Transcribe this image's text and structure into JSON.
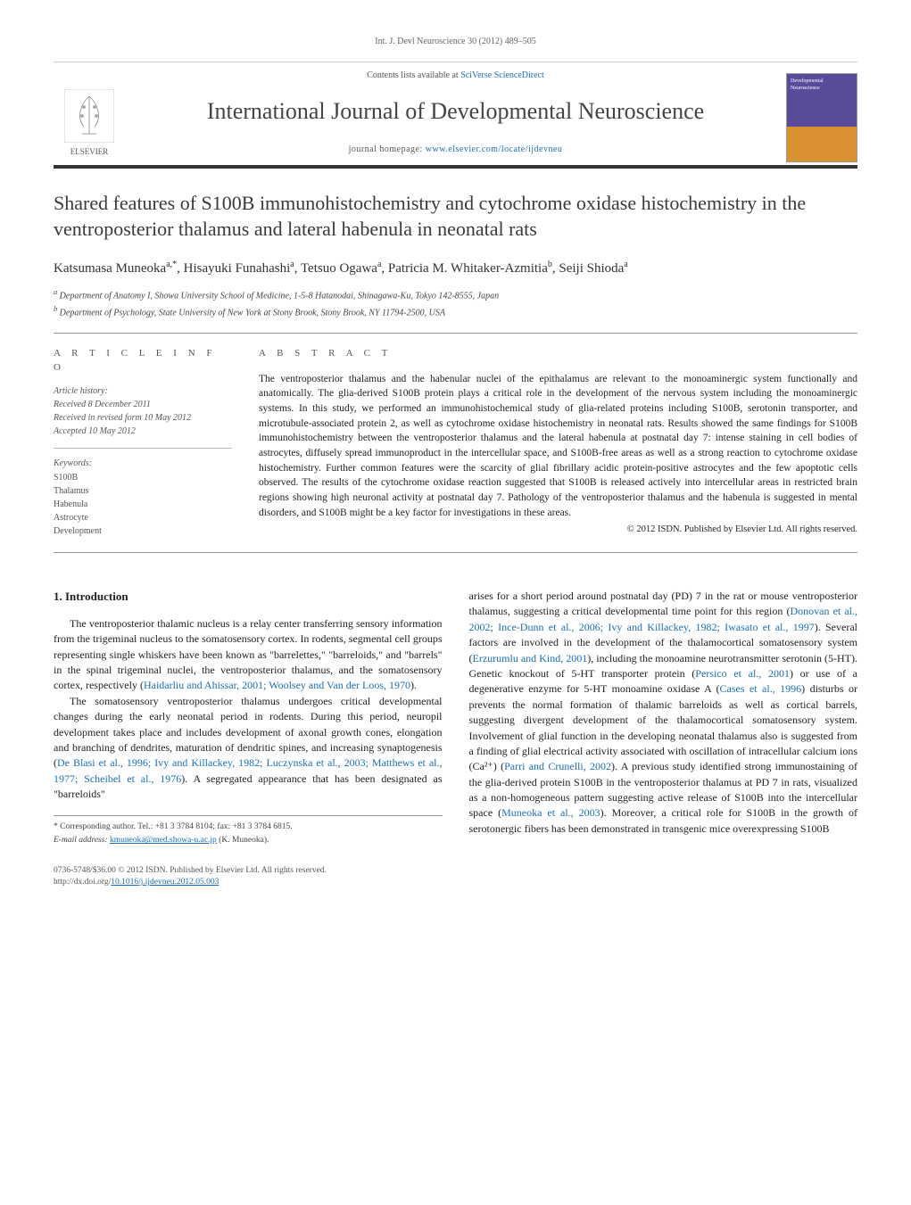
{
  "header_ref": "Int. J. Devl Neuroscience 30 (2012) 489–505",
  "contents_prefix": "Contents lists available at ",
  "contents_link": "SciVerse ScienceDirect",
  "journal_title": "International Journal of Developmental Neuroscience",
  "homepage_prefix": "journal homepage: ",
  "homepage_link": "www.elsevier.com/locate/ijdevneu",
  "elsevier_label": "ELSEVIER",
  "cover": {
    "top": "Developmental Neuroscience",
    "bottom": ""
  },
  "article_title": "Shared features of S100B immunohistochemistry and cytochrome oxidase histochemistry in the ventroposterior thalamus and lateral habenula in neonatal rats",
  "authors_html": "Katsumasa Muneoka",
  "authors": [
    {
      "name": "Katsumasa Muneoka",
      "sup": "a,*"
    },
    {
      "name": "Hisayuki Funahashi",
      "sup": "a"
    },
    {
      "name": "Tetsuo Ogawa",
      "sup": "a"
    },
    {
      "name": "Patricia M. Whitaker-Azmitia",
      "sup": "b"
    },
    {
      "name": "Seiji Shioda",
      "sup": "a"
    }
  ],
  "affiliations": [
    {
      "sup": "a",
      "text": "Department of Anatomy I, Showa University School of Medicine, 1-5-8 Hatanodai, Shinagawa-Ku, Tokyo 142-8555, Japan"
    },
    {
      "sup": "b",
      "text": "Department of Psychology, State University of New York at Stony Brook, Stony Brook, NY 11794-2500, USA"
    }
  ],
  "info_heading": "A R T I C L E   I N F O",
  "abstract_heading": "A B S T R A C T",
  "history": {
    "label": "Article history:",
    "received": "Received 8 December 2011",
    "revised": "Received in revised form 10 May 2012",
    "accepted": "Accepted 10 May 2012"
  },
  "keywords": {
    "label": "Keywords:",
    "items": [
      "S100B",
      "Thalamus",
      "Habenula",
      "Astrocyte",
      "Development"
    ]
  },
  "abstract": "The ventroposterior thalamus and the habenular nuclei of the epithalamus are relevant to the monoaminergic system functionally and anatomically. The glia-derived S100B protein plays a critical role in the development of the nervous system including the monoaminergic systems. In this study, we performed an immunohistochemical study of glia-related proteins including S100B, serotonin transporter, and microtubule-associated protein 2, as well as cytochrome oxidase histochemistry in neonatal rats. Results showed the same findings for S100B immunohistochemistry between the ventroposterior thalamus and the lateral habenula at postnatal day 7: intense staining in cell bodies of astrocytes, diffusely spread immunoproduct in the intercellular space, and S100B-free areas as well as a strong reaction to cytochrome oxidase histochemistry. Further common features were the scarcity of glial fibrillary acidic protein-positive astrocytes and the few apoptotic cells observed. The results of the cytochrome oxidase reaction suggested that S100B is released actively into intercellular areas in restricted brain regions showing high neuronal activity at postnatal day 7. Pathology of the ventroposterior thalamus and the habenula is suggested in mental disorders, and S100B might be a key factor for investigations in these areas.",
  "copyright": "© 2012 ISDN. Published by Elsevier Ltd. All rights reserved.",
  "intro_heading": "1. Introduction",
  "para1_a": "The ventroposterior thalamic nucleus is a relay center transferring sensory information from the trigeminal nucleus to the somatosensory cortex. In rodents, segmental cell groups representing single whiskers have been known as \"barrelettes,\" \"barreloids,\" and \"barrels\" in the spinal trigeminal nuclei, the ventroposterior thalamus, and the somatosensory cortex, respectively (",
  "para1_cite": "Haidarliu and Ahissar, 2001; Woolsey and Van der Loos, 1970",
  "para1_b": ").",
  "para2_a": "The somatosensory ventroposterior thalamus undergoes critical developmental changes during the early neonatal period in rodents. During this period, neuropil development takes place and includes development of axonal growth cones, elongation and branching of dendrites, maturation of dendritic spines, and increasing synaptogenesis (",
  "para2_cite": "De Blasi et al., 1996; Ivy and Killackey, 1982; Luczynska et al., 2003; Matthews et al., 1977; Scheibel et al., 1976",
  "para2_b": "). A segregated appearance that has been designated as \"barreloids\"",
  "para3_a": "arises for a short period around postnatal day (PD) 7 in the rat or mouse ventroposterior thalamus, suggesting a critical developmental time point for this region (",
  "para3_cite1": "Donovan et al., 2002; Ince-Dunn et al., 2006; Ivy and Killackey, 1982; Iwasato et al., 1997",
  "para3_b": "). Several factors are involved in the development of the thalamocortical somatosensory system (",
  "para3_cite2": "Erzurumlu and Kind, 2001",
  "para3_c": "), including the monoamine neurotransmitter serotonin (5-HT). Genetic knockout of 5-HT transporter protein (",
  "para3_cite3": "Persico et al., 2001",
  "para3_d": ") or use of a degenerative enzyme for 5-HT monoamine oxidase A (",
  "para3_cite4": "Cases et al., 1996",
  "para3_e": ") disturbs or prevents the normal formation of thalamic barreloids as well as cortical barrels, suggesting divergent development of the thalamocortical somatosensory system. Involvement of glial function in the developing neonatal thalamus also is suggested from a finding of glial electrical activity associated with oscillation of intracellular calcium ions (Ca²⁺) (",
  "para3_cite5": "Parri and Crunelli, 2002",
  "para3_f": "). A previous study identified strong immunostaining of the glia-derived protein S100B in the ventroposterior thalamus at PD 7 in rats, visualized as a non-homogeneous pattern suggesting active release of S100B into the intercellular space (",
  "para3_cite6": "Muneoka et al., 2003",
  "para3_g": "). Moreover, a critical role for S100B in the growth of serotonergic fibers has been demonstrated in transgenic mice overexpressing S100B",
  "footnote": {
    "corr": "* Corresponding author. Tel.: +81 3 3784 8104; fax: +81 3 3784 6815.",
    "email_label": "E-mail address:",
    "email": "kmuneoka@med.showa-u.ac.jp",
    "email_suffix": "(K. Muneoka)."
  },
  "footer": {
    "left1": "0736-5748/$36.00 © 2012 ISDN. Published by Elsevier Ltd. All rights reserved.",
    "left2_prefix": "http://dx.doi.org/",
    "doi": "10.1016/j.ijdevneu.2012.05.003"
  }
}
